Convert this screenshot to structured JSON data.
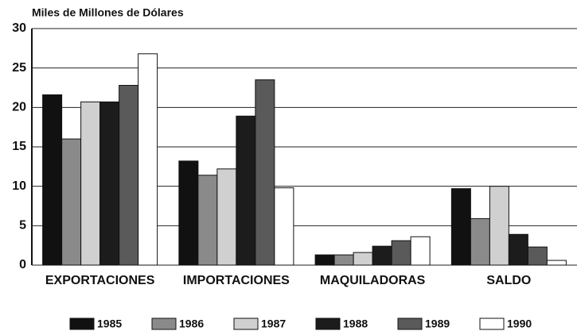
{
  "chart_data": {
    "type": "bar",
    "title": "Miles de Millones de Dólares",
    "categories": [
      "EXPORTACIONES",
      "IMPORTACIONES",
      "MAQUILADORAS",
      "SALDO"
    ],
    "series": [
      {
        "name": "1985",
        "color": "#111111",
        "values": [
          21.6,
          13.2,
          1.3,
          9.7
        ]
      },
      {
        "name": "1986",
        "color": "#8a8a8a",
        "values": [
          16.0,
          11.4,
          1.3,
          5.9
        ]
      },
      {
        "name": "1987",
        "color": "#d0d0d0",
        "values": [
          20.7,
          12.2,
          1.6,
          10.0
        ]
      },
      {
        "name": "1988",
        "color": "#1c1c1c",
        "values": [
          20.7,
          18.9,
          2.4,
          3.9
        ]
      },
      {
        "name": "1989",
        "color": "#5a5a5a",
        "values": [
          22.8,
          23.5,
          3.1,
          2.3
        ]
      },
      {
        "name": "1990",
        "color": "#ffffff",
        "values": [
          26.8,
          9.8,
          3.6,
          0.6
        ]
      }
    ],
    "ylim": [
      0,
      30
    ],
    "yticks": [
      0,
      5,
      10,
      15,
      20,
      25,
      30
    ],
    "grid": true
  }
}
